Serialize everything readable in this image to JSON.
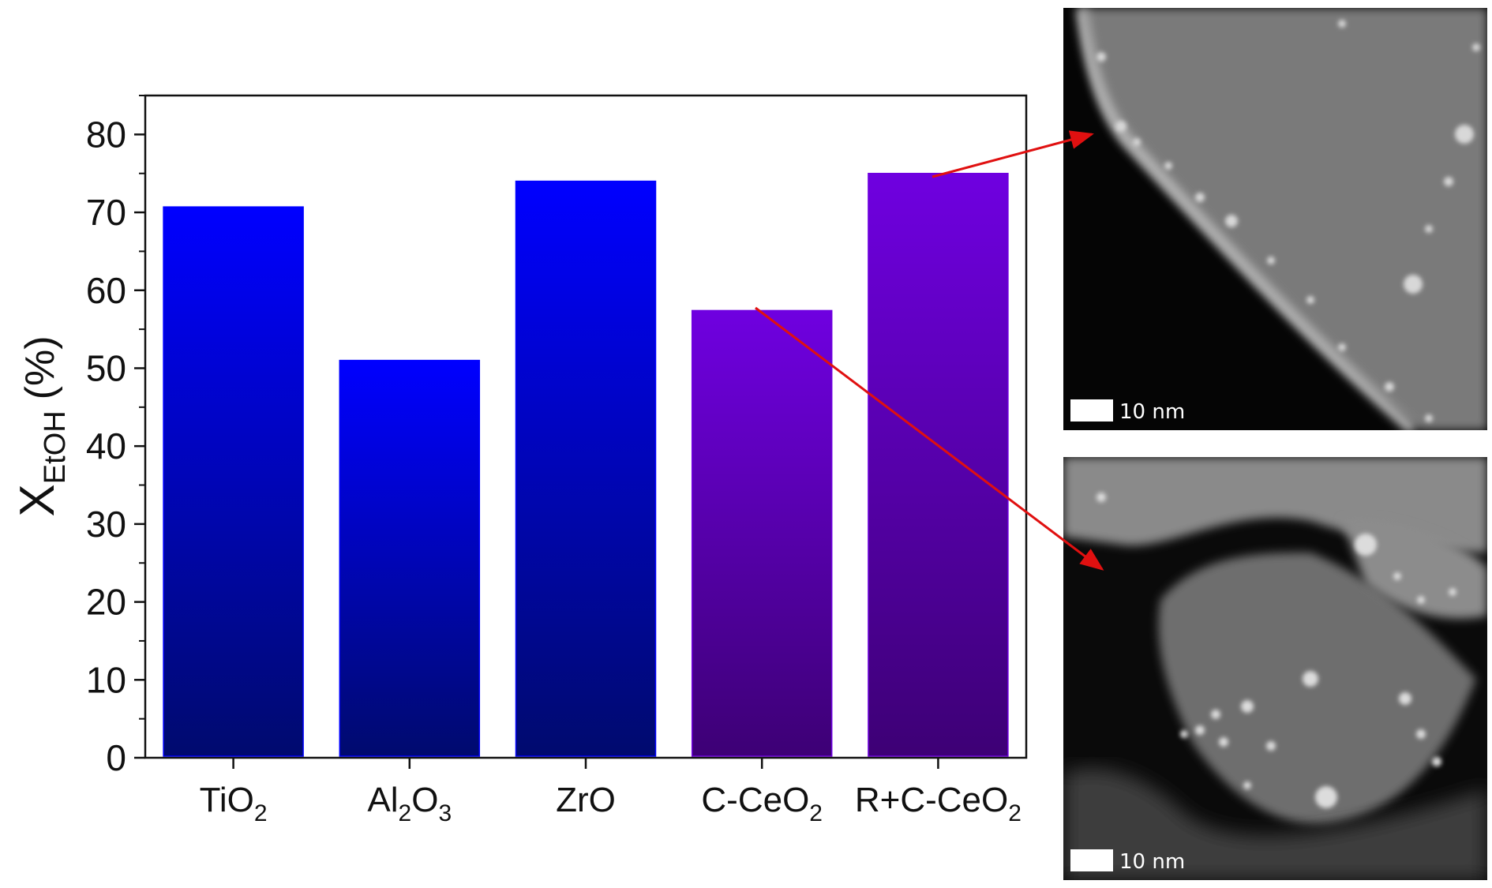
{
  "chart_data": {
    "type": "bar",
    "categories": [
      "TiO2",
      "Al2O3",
      "ZrO",
      "C-CeO2",
      "R+C-CeO2"
    ],
    "category_labels": [
      {
        "base": "TiO",
        "parts": [
          [
            "TiO",
            ""
          ],
          [
            "2",
            "sub"
          ]
        ]
      },
      {
        "base": "Al",
        "parts": [
          [
            "Al",
            ""
          ],
          [
            "2",
            "sub"
          ],
          [
            "O",
            ""
          ],
          [
            "3",
            "sub"
          ]
        ]
      },
      {
        "base": "ZrO",
        "parts": [
          [
            "ZrO",
            ""
          ]
        ]
      },
      {
        "base": "C-CeO",
        "parts": [
          [
            "C-CeO",
            ""
          ],
          [
            "2",
            "sub"
          ]
        ]
      },
      {
        "base": "R+C-CeO",
        "parts": [
          [
            "R+C-CeO",
            ""
          ],
          [
            "2",
            "sub"
          ]
        ]
      }
    ],
    "values": [
      70.7,
      51.0,
      74.0,
      57.4,
      75.0
    ],
    "bar_colors": [
      {
        "top": "#0000ff",
        "bottom": "#000a6e"
      },
      {
        "top": "#0000ff",
        "bottom": "#000a6e"
      },
      {
        "top": "#0000ff",
        "bottom": "#000a6e"
      },
      {
        "top": "#6f00e0",
        "bottom": "#3d0075"
      },
      {
        "top": "#6f00e0",
        "bottom": "#3d0075"
      }
    ],
    "title": "",
    "xlabel": "",
    "ylabel": {
      "main": "X",
      "sub": "EtOH",
      "unit": "(%)"
    },
    "ylim": [
      0,
      85
    ],
    "yticks": [
      0,
      10,
      20,
      30,
      40,
      50,
      60,
      70,
      80
    ],
    "grid": false,
    "legend": "none"
  },
  "sem_images": [
    {
      "scale_bar": "10 nm",
      "linked_category": "R+C-CeO2"
    },
    {
      "scale_bar": "10 nm",
      "linked_category": "C-CeO2"
    }
  ],
  "arrow_color": "#e01010"
}
